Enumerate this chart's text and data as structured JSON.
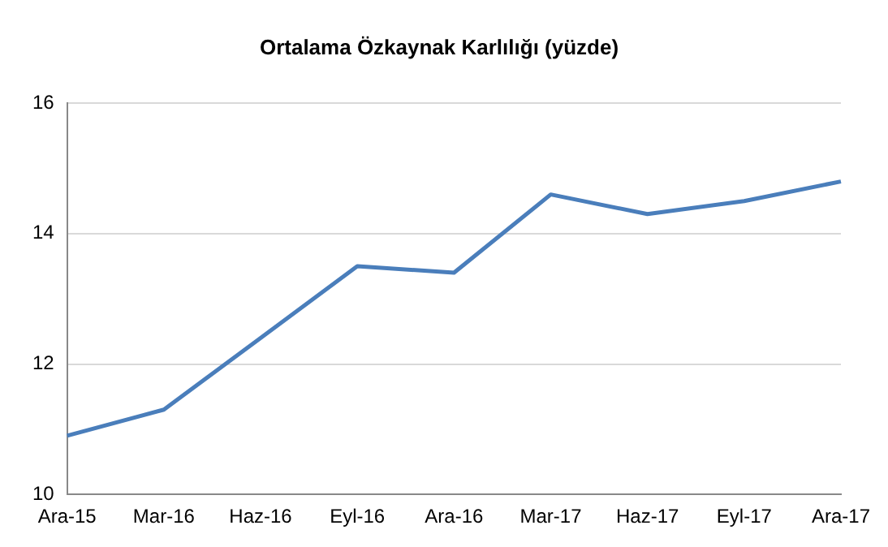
{
  "chart_data": {
    "type": "line",
    "title": "Ortalama Özkaynak Karlılığı (yüzde)",
    "categories": [
      "Ara-15",
      "Mar-16",
      "Haz-16",
      "Eyl-16",
      "Ara-16",
      "Mar-17",
      "Haz-17",
      "Eyl-17",
      "Ara-17"
    ],
    "series": [
      {
        "color": "#4a7ebb",
        "values": [
          10.9,
          11.3,
          12.4,
          13.5,
          13.4,
          14.6,
          14.3,
          14.5,
          14.8
        ]
      }
    ],
    "ylim": [
      10,
      16
    ],
    "yticks": [
      10,
      12,
      14,
      16
    ],
    "grid": "y",
    "legend": false,
    "marker": "none",
    "line_style": "solid"
  }
}
